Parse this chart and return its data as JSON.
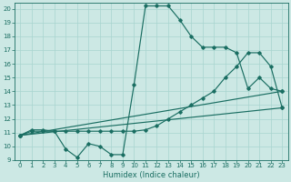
{
  "xlabel": "Humidex (Indice chaleur)",
  "bg_color": "#cce8e4",
  "line_color": "#1a6e62",
  "grid_color": "#a8d4cf",
  "xlim": [
    -0.5,
    23.5
  ],
  "ylim": [
    9,
    20.4
  ],
  "xticks": [
    0,
    1,
    2,
    3,
    4,
    5,
    6,
    7,
    8,
    9,
    10,
    11,
    12,
    13,
    14,
    15,
    16,
    17,
    18,
    19,
    20,
    21,
    22,
    23
  ],
  "yticks": [
    9,
    10,
    11,
    12,
    13,
    14,
    15,
    16,
    17,
    18,
    19,
    20
  ],
  "series": [
    {
      "x": [
        0,
        1,
        2,
        3,
        4,
        5,
        6,
        7,
        8,
        9,
        10,
        11,
        12,
        13,
        14,
        15,
        16,
        17,
        18,
        19,
        20,
        21,
        22,
        23
      ],
      "y": [
        10.8,
        11.2,
        11.2,
        11.1,
        9.8,
        9.2,
        10.2,
        10.0,
        9.4,
        9.4,
        14.5,
        20.2,
        20.2,
        20.2,
        19.2,
        18.0,
        17.2,
        17.2,
        17.2,
        16.8,
        14.2,
        15.0,
        14.2,
        14.0
      ]
    },
    {
      "x": [
        0,
        1,
        2,
        3,
        4,
        5,
        6,
        7,
        8,
        9,
        10,
        11,
        12,
        13,
        14,
        15,
        16,
        17,
        18,
        19,
        20,
        21,
        22,
        23
      ],
      "y": [
        10.8,
        11.1,
        11.1,
        11.1,
        11.1,
        11.1,
        11.1,
        11.1,
        11.1,
        11.1,
        11.1,
        11.2,
        11.5,
        12.0,
        12.5,
        13.0,
        13.5,
        14.0,
        15.0,
        15.8,
        16.8,
        16.8,
        15.8,
        12.8
      ]
    },
    {
      "x": [
        0,
        23
      ],
      "y": [
        10.8,
        14.0
      ]
    },
    {
      "x": [
        0,
        23
      ],
      "y": [
        10.8,
        12.8
      ]
    }
  ],
  "markersize": 1.8,
  "linewidth": 0.85,
  "xlabel_fontsize": 6.0,
  "tick_fontsize": 5.0
}
